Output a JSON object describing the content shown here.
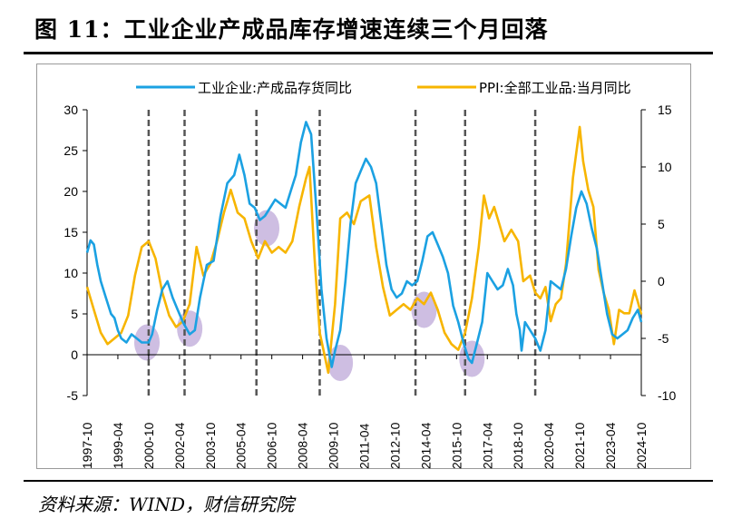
{
  "title": "图 11：工业企业产成品库存增速连续三个月回落",
  "source": "资料来源：WIND，财信研究院",
  "colors": {
    "inventory": "#1BA1E2",
    "ppi": "#F7B500",
    "divider": "#555555",
    "highlight": "#B9A3D6",
    "negative_tick": "#C00000"
  },
  "chart_data": {
    "type": "line",
    "title": "",
    "xlabel": "",
    "ylabel": "",
    "ylabel_right": "",
    "legend_position": "top",
    "x_ticks": [
      "1997-10",
      "1999-04",
      "2000-10",
      "2002-04",
      "2003-10",
      "2005-04",
      "2006-10",
      "2008-04",
      "2009-10",
      "2011-04",
      "2012-10",
      "2014-04",
      "2015-10",
      "2017-04",
      "2018-10",
      "2020-04",
      "2021-10",
      "2023-04",
      "2024-10"
    ],
    "y_left": {
      "range": [
        -5,
        30
      ],
      "ticks": [
        "30",
        "25",
        "20",
        "15",
        "10",
        "5",
        "0",
        "-5"
      ]
    },
    "y_right": {
      "range": [
        -10,
        15
      ],
      "ticks": [
        "15",
        "10",
        "5",
        "0",
        "-5",
        "-10"
      ]
    },
    "divider_dates": [
      "2000-10",
      "2002-07",
      "2006-01",
      "2009-02",
      "2013-10",
      "2016-03",
      "2019-08"
    ],
    "highlights": [
      {
        "x": "2000-09",
        "y": 1.5
      },
      {
        "x": "2002-10",
        "y": 3.2
      },
      {
        "x": "2006-07",
        "y": 15.5
      },
      {
        "x": "2010-02",
        "y": -1.0
      },
      {
        "x": "2014-03",
        "y": 5.5
      },
      {
        "x": "2016-07",
        "y": -0.5
      }
    ],
    "series": [
      {
        "name": "工业企业:产成品存货同比",
        "axis": "left",
        "points": [
          [
            "1997-10",
            12.5
          ],
          [
            "1997-12",
            14.0
          ],
          [
            "1998-02",
            13.5
          ],
          [
            "1998-04",
            11.0
          ],
          [
            "1998-06",
            9.0
          ],
          [
            "1998-09",
            7.0
          ],
          [
            "1998-12",
            5.0
          ],
          [
            "1999-02",
            4.5
          ],
          [
            "1999-04",
            3.0
          ],
          [
            "1999-06",
            2.0
          ],
          [
            "1999-09",
            1.5
          ],
          [
            "1999-12",
            2.5
          ],
          [
            "2000-03",
            2.0
          ],
          [
            "2000-06",
            1.5
          ],
          [
            "2000-10",
            1.5
          ],
          [
            "2000-12",
            2.5
          ],
          [
            "2001-03",
            5.5
          ],
          [
            "2001-06",
            8.0
          ],
          [
            "2001-09",
            9.0
          ],
          [
            "2001-12",
            7.0
          ],
          [
            "2002-03",
            5.5
          ],
          [
            "2002-06",
            4.0
          ],
          [
            "2002-10",
            2.5
          ],
          [
            "2003-01",
            3.0
          ],
          [
            "2003-04",
            7.0
          ],
          [
            "2003-08",
            11.0
          ],
          [
            "2003-12",
            11.5
          ],
          [
            "2004-04",
            17.0
          ],
          [
            "2004-08",
            21.0
          ],
          [
            "2004-12",
            22.0
          ],
          [
            "2005-03",
            24.5
          ],
          [
            "2005-06",
            22.0
          ],
          [
            "2005-09",
            18.5
          ],
          [
            "2005-12",
            18.0
          ],
          [
            "2006-03",
            16.5
          ],
          [
            "2006-06",
            17.0
          ],
          [
            "2006-09",
            18.0
          ],
          [
            "2006-12",
            19.0
          ],
          [
            "2007-03",
            18.5
          ],
          [
            "2007-06",
            18.0
          ],
          [
            "2007-09",
            20.0
          ],
          [
            "2007-12",
            22.0
          ],
          [
            "2008-03",
            26.0
          ],
          [
            "2008-06",
            28.5
          ],
          [
            "2008-09",
            27.0
          ],
          [
            "2008-12",
            18.0
          ],
          [
            "2009-03",
            8.0
          ],
          [
            "2009-06",
            2.0
          ],
          [
            "2009-09",
            -1.5
          ],
          [
            "2009-11",
            0.5
          ],
          [
            "2010-02",
            3.0
          ],
          [
            "2010-05",
            9.0
          ],
          [
            "2010-08",
            16.0
          ],
          [
            "2010-11",
            21.0
          ],
          [
            "2011-02",
            22.5
          ],
          [
            "2011-05",
            24.0
          ],
          [
            "2011-08",
            23.0
          ],
          [
            "2011-11",
            21.0
          ],
          [
            "2012-02",
            16.0
          ],
          [
            "2012-05",
            11.0
          ],
          [
            "2012-08",
            8.0
          ],
          [
            "2012-11",
            7.0
          ],
          [
            "2013-02",
            7.5
          ],
          [
            "2013-05",
            9.0
          ],
          [
            "2013-08",
            8.5
          ],
          [
            "2013-11",
            9.0
          ],
          [
            "2014-02",
            11.5
          ],
          [
            "2014-05",
            14.5
          ],
          [
            "2014-08",
            15.0
          ],
          [
            "2014-11",
            13.5
          ],
          [
            "2015-02",
            12.0
          ],
          [
            "2015-05",
            10.0
          ],
          [
            "2015-08",
            6.0
          ],
          [
            "2015-11",
            4.0
          ],
          [
            "2016-02",
            1.5
          ],
          [
            "2016-05",
            -0.5
          ],
          [
            "2016-07",
            -1.0
          ],
          [
            "2016-10",
            1.5
          ],
          [
            "2017-01",
            4.0
          ],
          [
            "2017-04",
            10.0
          ],
          [
            "2017-07",
            9.0
          ],
          [
            "2017-10",
            8.0
          ],
          [
            "2018-01",
            8.5
          ],
          [
            "2018-04",
            10.5
          ],
          [
            "2018-07",
            8.5
          ],
          [
            "2018-09",
            5.0
          ],
          [
            "2018-11",
            3.0
          ],
          [
            "2018-12",
            0.5
          ],
          [
            "2019-02",
            4.0
          ],
          [
            "2019-05",
            3.0
          ],
          [
            "2019-08",
            2.0
          ],
          [
            "2019-11",
            0.5
          ],
          [
            "2020-02",
            3.0
          ],
          [
            "2020-05",
            9.0
          ],
          [
            "2020-08",
            8.5
          ],
          [
            "2020-11",
            8.0
          ],
          [
            "2021-02",
            10.5
          ],
          [
            "2021-05",
            14.5
          ],
          [
            "2021-08",
            18.0
          ],
          [
            "2021-11",
            20.0
          ],
          [
            "2022-02",
            18.5
          ],
          [
            "2022-05",
            15.5
          ],
          [
            "2022-08",
            13.0
          ],
          [
            "2022-11",
            9.0
          ],
          [
            "2023-02",
            5.0
          ],
          [
            "2023-05",
            2.5
          ],
          [
            "2023-08",
            2.0
          ],
          [
            "2023-11",
            2.5
          ],
          [
            "2024-02",
            3.0
          ],
          [
            "2024-05",
            4.5
          ],
          [
            "2024-08",
            5.5
          ],
          [
            "2024-10",
            4.0
          ]
        ]
      },
      {
        "name": "PPI:全部工业品:当月同比",
        "axis": "right",
        "points": [
          [
            "1997-10",
            -0.5
          ],
          [
            "1998-02",
            -2.5
          ],
          [
            "1998-06",
            -4.5
          ],
          [
            "1998-10",
            -5.5
          ],
          [
            "1999-02",
            -5.0
          ],
          [
            "1999-06",
            -4.5
          ],
          [
            "1999-10",
            -3.0
          ],
          [
            "2000-02",
            0.5
          ],
          [
            "2000-06",
            3.0
          ],
          [
            "2000-10",
            3.5
          ],
          [
            "2001-02",
            2.0
          ],
          [
            "2001-06",
            -1.0
          ],
          [
            "2001-10",
            -3.0
          ],
          [
            "2002-02",
            -4.0
          ],
          [
            "2002-06",
            -3.5
          ],
          [
            "2002-10",
            -2.0
          ],
          [
            "2003-02",
            3.0
          ],
          [
            "2003-06",
            0.5
          ],
          [
            "2003-10",
            1.5
          ],
          [
            "2004-02",
            3.5
          ],
          [
            "2004-06",
            6.0
          ],
          [
            "2004-10",
            8.0
          ],
          [
            "2005-02",
            6.0
          ],
          [
            "2005-06",
            5.5
          ],
          [
            "2005-10",
            3.5
          ],
          [
            "2006-02",
            2.0
          ],
          [
            "2006-06",
            3.5
          ],
          [
            "2006-10",
            2.5
          ],
          [
            "2007-02",
            3.0
          ],
          [
            "2007-06",
            2.5
          ],
          [
            "2007-10",
            3.5
          ],
          [
            "2008-02",
            6.5
          ],
          [
            "2008-06",
            9.0
          ],
          [
            "2008-08",
            10.0
          ],
          [
            "2008-11",
            2.0
          ],
          [
            "2009-02",
            -4.5
          ],
          [
            "2009-07",
            -8.0
          ],
          [
            "2009-11",
            -2.0
          ],
          [
            "2010-02",
            5.5
          ],
          [
            "2010-06",
            6.0
          ],
          [
            "2010-10",
            5.0
          ],
          [
            "2011-02",
            7.0
          ],
          [
            "2011-07",
            7.5
          ],
          [
            "2011-11",
            3.0
          ],
          [
            "2012-03",
            -0.5
          ],
          [
            "2012-07",
            -3.0
          ],
          [
            "2012-11",
            -2.5
          ],
          [
            "2013-03",
            -2.0
          ],
          [
            "2013-07",
            -2.5
          ],
          [
            "2013-11",
            -1.5
          ],
          [
            "2014-03",
            -2.0
          ],
          [
            "2014-07",
            -1.0
          ],
          [
            "2014-11",
            -2.5
          ],
          [
            "2015-03",
            -4.5
          ],
          [
            "2015-07",
            -5.5
          ],
          [
            "2015-11",
            -6.0
          ],
          [
            "2016-03",
            -4.5
          ],
          [
            "2016-07",
            -1.5
          ],
          [
            "2016-11",
            3.0
          ],
          [
            "2017-02",
            7.5
          ],
          [
            "2017-05",
            5.5
          ],
          [
            "2017-08",
            6.5
          ],
          [
            "2017-11",
            5.0
          ],
          [
            "2018-02",
            3.5
          ],
          [
            "2018-06",
            4.5
          ],
          [
            "2018-10",
            3.5
          ],
          [
            "2019-01",
            0.0
          ],
          [
            "2019-05",
            0.5
          ],
          [
            "2019-08",
            -1.0
          ],
          [
            "2019-11",
            -1.5
          ],
          [
            "2020-02",
            -0.5
          ],
          [
            "2020-05",
            -3.5
          ],
          [
            "2020-08",
            -2.0
          ],
          [
            "2020-11",
            -1.5
          ],
          [
            "2021-02",
            1.5
          ],
          [
            "2021-06",
            9.0
          ],
          [
            "2021-10",
            13.5
          ],
          [
            "2021-12",
            10.5
          ],
          [
            "2022-03",
            8.0
          ],
          [
            "2022-06",
            6.5
          ],
          [
            "2022-09",
            1.0
          ],
          [
            "2022-12",
            -1.0
          ],
          [
            "2023-03",
            -2.5
          ],
          [
            "2023-06",
            -5.5
          ],
          [
            "2023-09",
            -2.5
          ],
          [
            "2023-12",
            -2.8
          ],
          [
            "2024-03",
            -2.8
          ],
          [
            "2024-06",
            -0.8
          ],
          [
            "2024-08",
            -1.8
          ],
          [
            "2024-10",
            -2.9
          ]
        ]
      }
    ]
  }
}
